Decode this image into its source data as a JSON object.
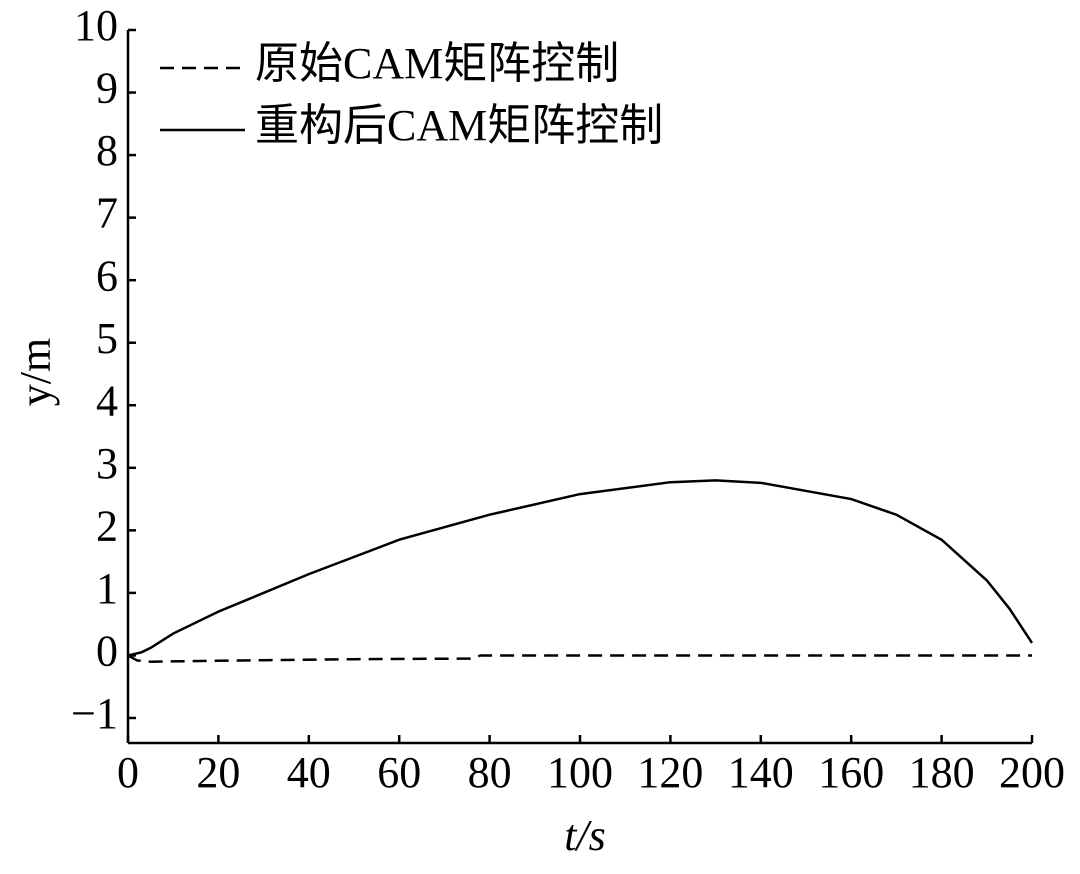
{
  "chart_data": {
    "type": "line",
    "x_label": "t/s",
    "y_label": "y/m",
    "xlim": [
      0,
      200
    ],
    "ylim": [
      -1.4,
      10
    ],
    "xticks": [
      0,
      20,
      40,
      60,
      80,
      100,
      120,
      140,
      160,
      180,
      200
    ],
    "yticks": [
      {
        "value": -1,
        "label": "−1"
      },
      0,
      1,
      2,
      3,
      4,
      5,
      6,
      7,
      8,
      9,
      10
    ],
    "grid": false,
    "legend": "upper left",
    "series": [
      {
        "name": "原始CAM矩阵控制",
        "color": "#000000",
        "dash": true,
        "x": [
          0,
          2,
          5,
          25,
          50,
          76,
          78,
          120,
          200
        ],
        "values": [
          0,
          -0.08,
          -0.1,
          -0.08,
          -0.06,
          -0.05,
          0,
          0,
          0
        ]
      },
      {
        "name": "重构后CAM矩阵控制",
        "color": "#000000",
        "dash": false,
        "x": [
          0,
          3,
          5,
          10,
          20,
          40,
          60,
          80,
          100,
          120,
          130,
          140,
          160,
          170,
          180,
          190,
          195,
          200
        ],
        "values": [
          0,
          0.05,
          0.12,
          0.35,
          0.7,
          1.3,
          1.85,
          2.25,
          2.58,
          2.77,
          2.8,
          2.76,
          2.5,
          2.25,
          1.85,
          1.2,
          0.75,
          0.2
        ]
      }
    ]
  }
}
